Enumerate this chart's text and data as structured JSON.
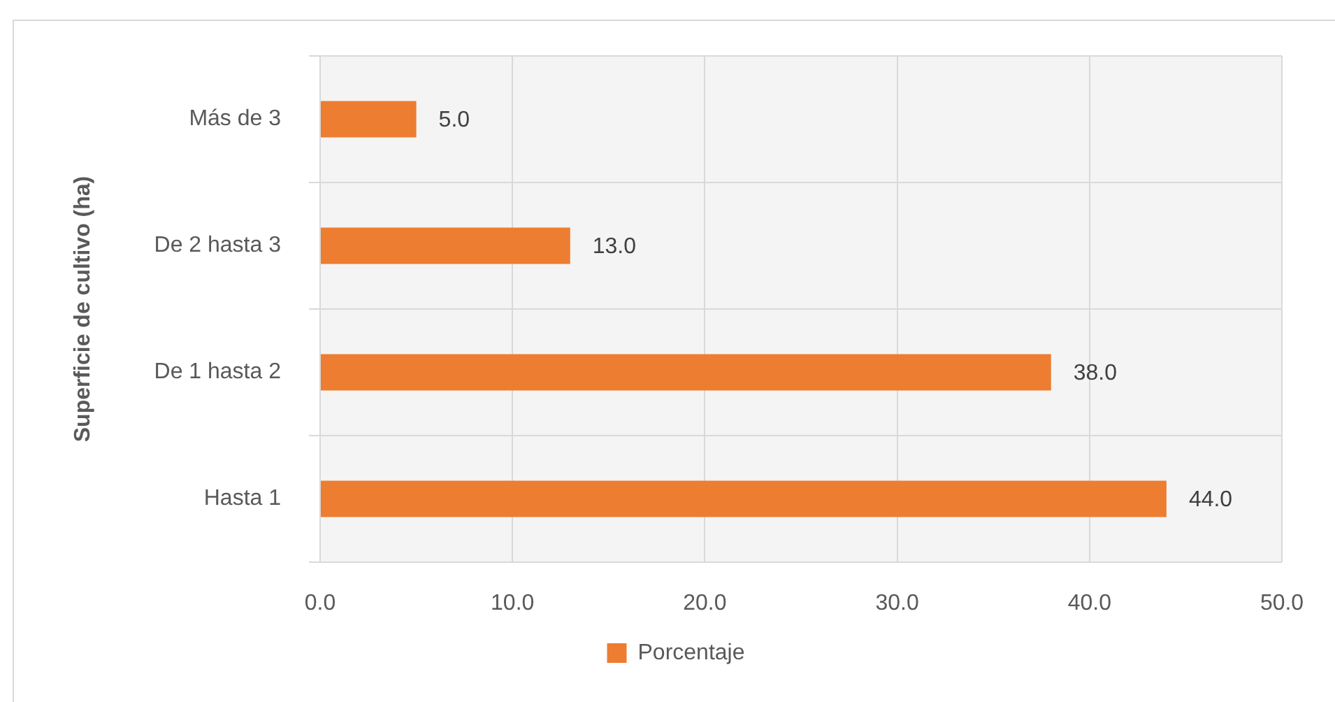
{
  "chart_data": {
    "type": "bar",
    "orientation": "horizontal",
    "ylabel": "Superficie de cultivo (ha)",
    "categories": [
      "Más de 3",
      "De 2 hasta 3",
      "De 1 hasta 2",
      "Hasta 1"
    ],
    "series": [
      {
        "name": "Porcentaje",
        "color": "#ed7d31",
        "values": [
          5,
          13,
          38,
          44
        ],
        "value_labels": [
          "5.0",
          "13.0",
          "38.0",
          "44.0"
        ]
      }
    ],
    "xlim": [
      0,
      50
    ],
    "xticks": [
      {
        "value": 0,
        "label": "0.0"
      },
      {
        "value": 10,
        "label": "10.0"
      },
      {
        "value": 20,
        "label": "20.0"
      },
      {
        "value": 30,
        "label": "30.0"
      },
      {
        "value": 40,
        "label": "40.0"
      },
      {
        "value": 50,
        "label": "50.0"
      }
    ],
    "grid": true,
    "legend": "bottom"
  }
}
